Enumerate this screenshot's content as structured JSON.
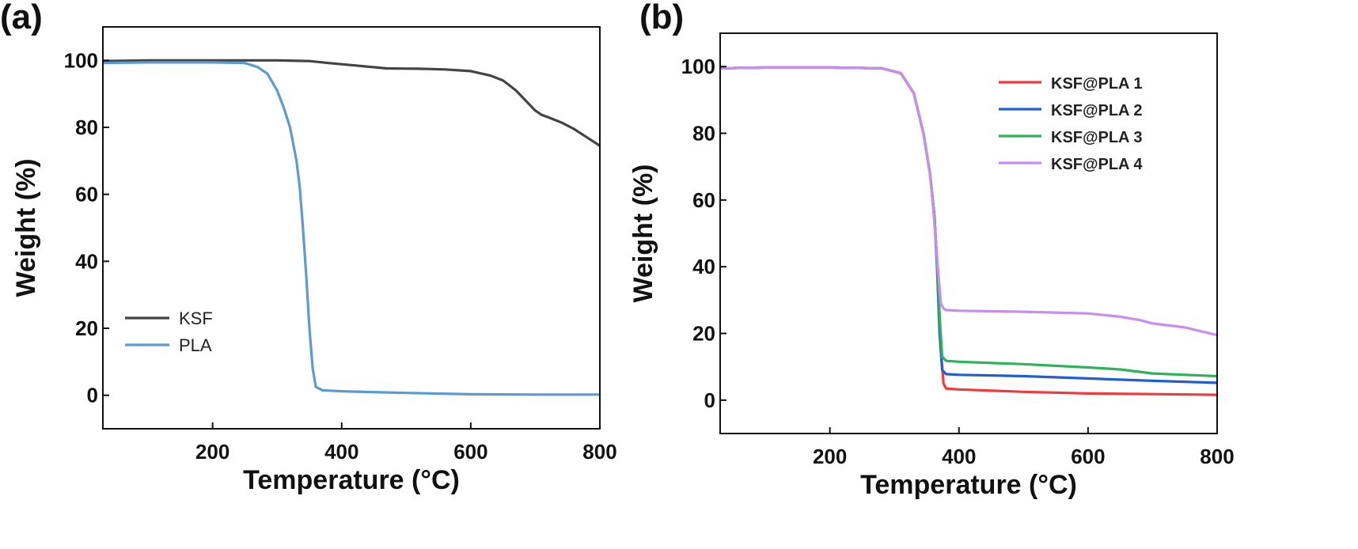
{
  "chart_data": [
    {
      "type": "line",
      "panel_label": "(a)",
      "xlabel": "Temperature (°C)",
      "ylabel": "Weight (%)",
      "xlim": [
        30,
        800
      ],
      "ylim": [
        -10,
        110
      ],
      "xticks": [
        200,
        400,
        600,
        800
      ],
      "yticks": [
        0,
        20,
        40,
        60,
        80,
        100
      ],
      "grid": false,
      "legend_position": "bottom-left",
      "series": [
        {
          "name": "KSF",
          "color": "#444444",
          "x": [
            30,
            100,
            200,
            300,
            350,
            380,
            420,
            470,
            520,
            560,
            600,
            630,
            650,
            670,
            690,
            700,
            710,
            720,
            740,
            760,
            780,
            800
          ],
          "y": [
            99.8,
            100,
            100,
            100,
            99.8,
            99.2,
            98.5,
            97.6,
            97.5,
            97.3,
            96.8,
            95.5,
            94,
            91,
            87,
            85,
            83.7,
            83,
            81.5,
            79.5,
            77,
            74.5
          ]
        },
        {
          "name": "PLA",
          "color": "#5b9bd5",
          "x": [
            30,
            100,
            200,
            250,
            270,
            285,
            300,
            310,
            320,
            330,
            335,
            340,
            345,
            350,
            355,
            360,
            370,
            400,
            500,
            600,
            700,
            800
          ],
          "y": [
            99.2,
            99.4,
            99.4,
            99.2,
            98,
            96,
            91,
            86,
            80,
            70,
            62,
            50,
            36,
            20,
            8,
            2.5,
            1.5,
            1.2,
            0.7,
            0.3,
            0.2,
            0.2
          ]
        }
      ]
    },
    {
      "type": "line",
      "panel_label": "(b)",
      "xlabel": "Temperature (°C)",
      "ylabel": "Weight (%)",
      "xlim": [
        30,
        800
      ],
      "ylim": [
        -10,
        110
      ],
      "xticks": [
        200,
        400,
        600,
        800
      ],
      "yticks": [
        0,
        20,
        40,
        60,
        80,
        100
      ],
      "grid": false,
      "legend_position": "top-right",
      "series": [
        {
          "name": "KSF@PLA 1",
          "color": "#ee3b3b",
          "x": [
            30,
            100,
            200,
            280,
            310,
            330,
            345,
            355,
            362,
            368,
            372,
            376,
            380,
            400,
            500,
            600,
            700,
            800
          ],
          "y": [
            99.5,
            99.7,
            99.7,
            99.5,
            98,
            92,
            80,
            68,
            55,
            35,
            15,
            5,
            3.5,
            3.2,
            2.5,
            2,
            1.8,
            1.6
          ]
        },
        {
          "name": "KSF@PLA 2",
          "color": "#1f5fd1",
          "x": [
            30,
            100,
            200,
            280,
            310,
            330,
            345,
            355,
            362,
            366,
            370,
            374,
            380,
            400,
            500,
            600,
            700,
            800
          ],
          "y": [
            99.5,
            99.7,
            99.7,
            99.5,
            98,
            92,
            80,
            68,
            55,
            40,
            20,
            9,
            7.8,
            7.6,
            7.2,
            6.5,
            5.8,
            5.2
          ]
        },
        {
          "name": "KSF@PLA 3",
          "color": "#2fb35a",
          "x": [
            30,
            100,
            200,
            280,
            310,
            330,
            345,
            355,
            362,
            366,
            370,
            374,
            380,
            400,
            500,
            600,
            650,
            700,
            800
          ],
          "y": [
            99.5,
            99.7,
            99.7,
            99.5,
            98,
            92,
            80,
            68,
            55,
            42,
            25,
            13,
            11.8,
            11.5,
            10.8,
            9.8,
            9.2,
            8,
            7.2
          ]
        },
        {
          "name": "KSF@PLA 4",
          "color": "#c98cf0",
          "x": [
            30,
            100,
            200,
            280,
            310,
            330,
            345,
            355,
            360,
            364,
            368,
            372,
            376,
            380,
            400,
            500,
            600,
            650,
            680,
            700,
            750,
            800
          ],
          "y": [
            99.5,
            99.7,
            99.7,
            99.5,
            98,
            92,
            80,
            68,
            58,
            48,
            38,
            29,
            27.5,
            27,
            26.8,
            26.5,
            26,
            25,
            24,
            23,
            21.8,
            19.5
          ]
        }
      ]
    }
  ]
}
